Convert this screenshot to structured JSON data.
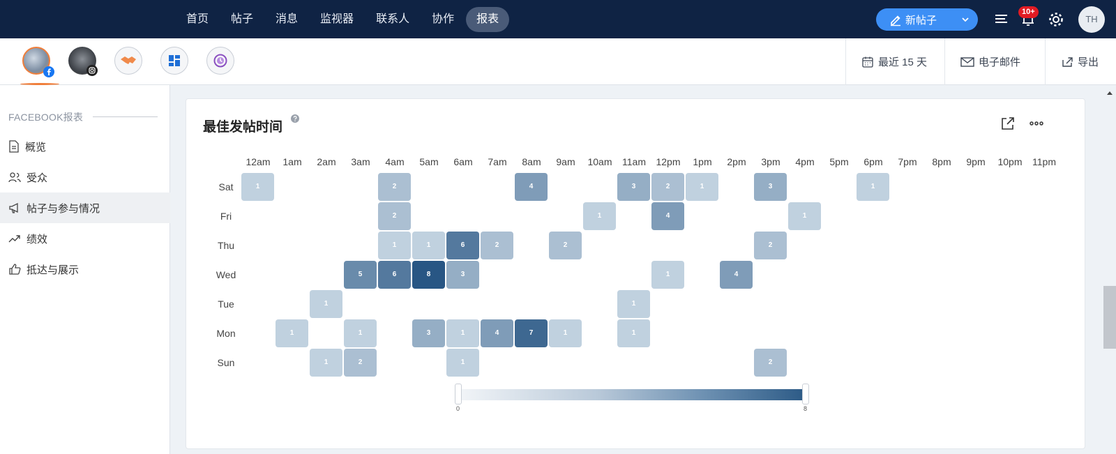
{
  "nav": {
    "items": [
      "首页",
      "帖子",
      "消息",
      "监视器",
      "联系人",
      "协作",
      "报表"
    ],
    "active_index": 6,
    "new_post_label": "新帖子",
    "notification_badge": "10+",
    "user_initials": "TH"
  },
  "profiles": [
    {
      "name": "facebook-profile",
      "network_icon": "facebook-icon",
      "selected": true
    },
    {
      "name": "instagram-profile",
      "network_icon": "instagram-icon"
    },
    {
      "name": "handshake-profile",
      "icon": "handshake-icon"
    },
    {
      "name": "dashboard-profile",
      "icon": "dashboard-icon"
    },
    {
      "name": "clock-profile",
      "icon": "clock-icon"
    }
  ],
  "toolbar": {
    "date_range": "最近 15 天",
    "email": "电子邮件",
    "export": "导出"
  },
  "sidebar": {
    "heading": "FACEBOOK报表",
    "items": [
      {
        "label": "概览",
        "icon": "document-icon"
      },
      {
        "label": "受众",
        "icon": "people-icon"
      },
      {
        "label": "帖子与参与情况",
        "icon": "megaphone-icon",
        "active": true
      },
      {
        "label": "绩效",
        "icon": "trend-icon"
      },
      {
        "label": "抵达与展示",
        "icon": "thumbs-up-icon"
      }
    ]
  },
  "card": {
    "title": "最佳发帖时间"
  },
  "chart_data": {
    "type": "heatmap",
    "title": "最佳发帖时间",
    "x_labels": [
      "12am",
      "1am",
      "2am",
      "3am",
      "4am",
      "5am",
      "6am",
      "7am",
      "8am",
      "9am",
      "10am",
      "11am",
      "12pm",
      "1pm",
      "2pm",
      "3pm",
      "4pm",
      "5pm",
      "6pm",
      "7pm",
      "8pm",
      "9pm",
      "10pm",
      "11pm"
    ],
    "y_labels": [
      "Sat",
      "Fri",
      "Thu",
      "Wed",
      "Tue",
      "Mon",
      "Sun"
    ],
    "values": [
      [
        1,
        0,
        0,
        0,
        2,
        0,
        0,
        0,
        4,
        0,
        0,
        3,
        2,
        1,
        0,
        3,
        0,
        0,
        1,
        0,
        0,
        0,
        0,
        0
      ],
      [
        0,
        0,
        0,
        0,
        2,
        0,
        0,
        0,
        0,
        0,
        1,
        0,
        4,
        0,
        0,
        0,
        1,
        0,
        0,
        0,
        0,
        0,
        0,
        0
      ],
      [
        0,
        0,
        0,
        0,
        1,
        1,
        6,
        2,
        0,
        2,
        0,
        0,
        0,
        0,
        0,
        2,
        0,
        0,
        0,
        0,
        0,
        0,
        0,
        0
      ],
      [
        0,
        0,
        0,
        5,
        6,
        8,
        3,
        0,
        0,
        0,
        0,
        0,
        1,
        0,
        4,
        0,
        0,
        0,
        0,
        0,
        0,
        0,
        0,
        0
      ],
      [
        0,
        0,
        1,
        0,
        0,
        0,
        0,
        0,
        0,
        0,
        0,
        1,
        0,
        0,
        0,
        0,
        0,
        0,
        0,
        0,
        0,
        0,
        0,
        0
      ],
      [
        0,
        1,
        0,
        1,
        0,
        3,
        1,
        4,
        7,
        1,
        0,
        1,
        0,
        0,
        0,
        0,
        0,
        0,
        0,
        0,
        0,
        0,
        0,
        0
      ],
      [
        0,
        0,
        1,
        2,
        0,
        0,
        1,
        0,
        0,
        0,
        0,
        0,
        0,
        0,
        0,
        2,
        0,
        0,
        0,
        0,
        0,
        0,
        0,
        0
      ]
    ],
    "scale_range": [
      0,
      8
    ],
    "scale_labels": [
      "0",
      "8"
    ]
  }
}
